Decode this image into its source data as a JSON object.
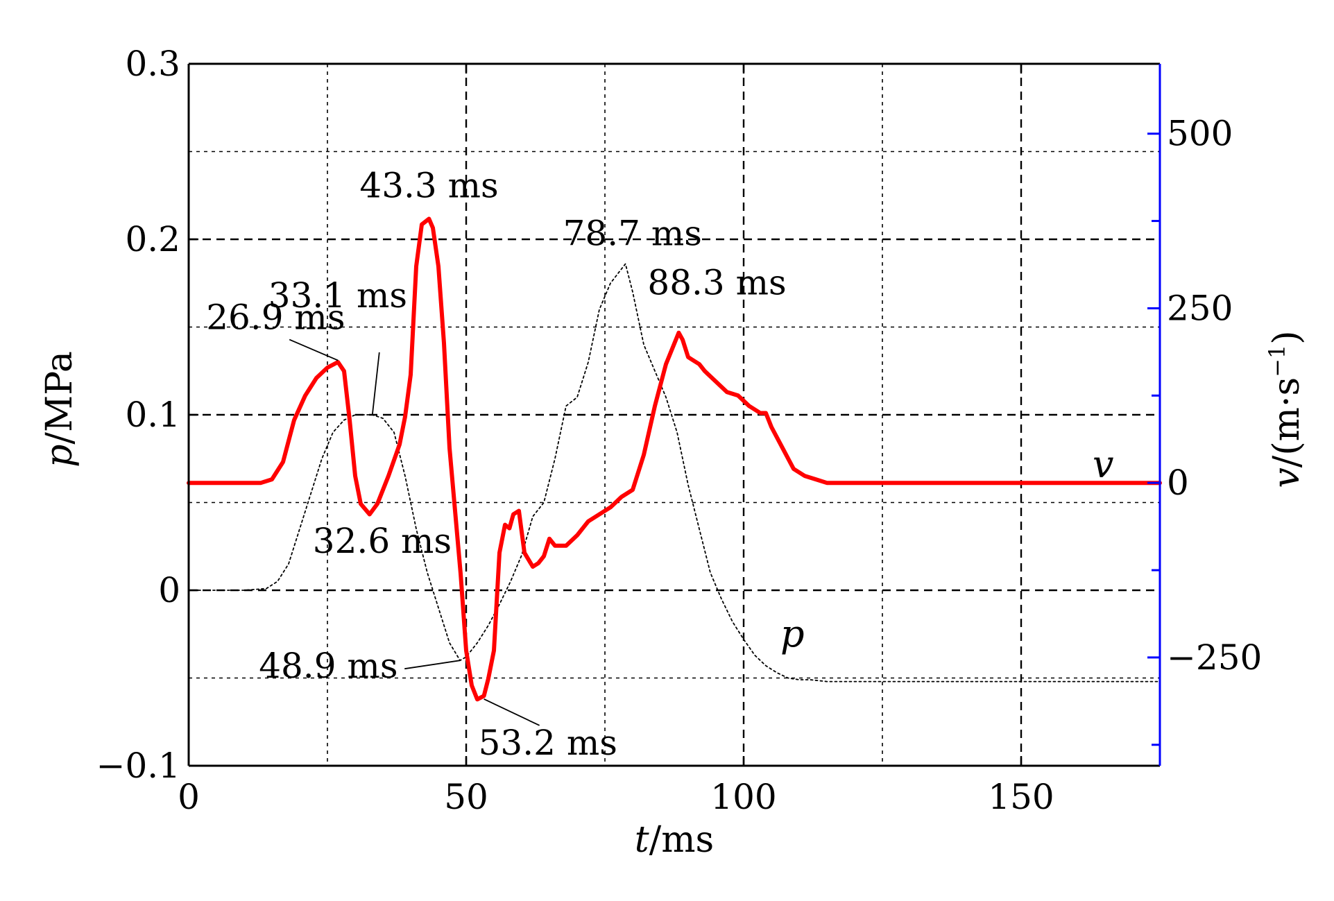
{
  "chart_data": {
    "type": "line",
    "xlabel": "t/ms",
    "xlabel_italic": "t",
    "xlabel_rest": "/ms",
    "ylabel_left": "p/MPa",
    "ylabel_left_italic": "p",
    "ylabel_left_rest": "/MPa",
    "ylabel_right": "v/(m·s⁻¹)",
    "ylabel_right_italic": "v",
    "ylabel_right_rest": "/(m·s",
    "ylabel_right_sup": "−1",
    "ylabel_right_close": ")",
    "xlim": [
      0,
      175
    ],
    "ylim_left": [
      -0.1,
      0.3
    ],
    "ylim_right": [
      -405,
      600
    ],
    "x_ticks": [
      0,
      50,
      100,
      150
    ],
    "x_tick_labels": [
      "0",
      "50",
      "100",
      "150"
    ],
    "y_left_ticks": [
      -0.1,
      0,
      0.1,
      0.2,
      0.3
    ],
    "y_left_tick_labels": [
      "−0.1",
      "0",
      "0.1",
      "0.2",
      "0.3"
    ],
    "y_right_ticks": [
      -250,
      0,
      250,
      500
    ],
    "y_right_tick_labels": [
      "−250",
      "0",
      "250",
      "500"
    ],
    "grid": true,
    "right_axis_color": "#0000ff",
    "series": [
      {
        "name": "p",
        "axis": "left",
        "color": "#000000",
        "style": "dotted",
        "x": [
          0,
          5,
          10,
          14,
          16,
          18,
          20,
          22,
          24,
          26,
          28,
          30,
          32,
          33.1,
          35,
          37,
          39,
          41,
          43,
          45,
          47,
          48.9,
          50,
          52,
          54,
          56,
          58,
          60,
          62,
          64,
          66,
          68,
          70,
          72,
          74,
          76,
          78.7,
          80,
          82,
          84,
          86,
          88,
          90,
          92,
          94,
          96,
          98,
          100,
          102,
          104,
          106,
          108,
          110,
          112,
          115,
          120,
          130,
          140,
          150,
          160,
          170,
          175
        ],
        "y": [
          0,
          0,
          0,
          0.001,
          0.005,
          0.015,
          0.035,
          0.055,
          0.075,
          0.09,
          0.097,
          0.1,
          0.1,
          0.1,
          0.098,
          0.09,
          0.065,
          0.035,
          0.01,
          -0.01,
          -0.03,
          -0.04,
          -0.038,
          -0.03,
          -0.02,
          -0.008,
          0.005,
          0.02,
          0.042,
          0.05,
          0.075,
          0.105,
          0.11,
          0.13,
          0.16,
          0.175,
          0.186,
          0.17,
          0.14,
          0.125,
          0.11,
          0.09,
          0.06,
          0.035,
          0.01,
          -0.005,
          -0.018,
          -0.028,
          -0.037,
          -0.043,
          -0.047,
          -0.05,
          -0.051,
          -0.051,
          -0.052,
          -0.052,
          -0.052,
          -0.052,
          -0.052,
          -0.052,
          -0.052,
          -0.052
        ]
      },
      {
        "name": "v",
        "axis": "right",
        "color": "#ff0000",
        "style": "solid",
        "x": [
          0,
          5,
          10,
          13,
          15,
          17,
          19,
          21,
          23,
          25,
          26.9,
          28,
          29,
          30,
          31,
          32.6,
          34,
          36,
          38,
          39,
          40,
          41,
          42,
          43.3,
          44,
          45,
          46,
          47,
          48,
          49,
          50,
          51,
          52,
          53.2,
          54,
          55,
          56,
          57,
          57.8,
          58.5,
          59.5,
          60.5,
          62,
          63,
          64,
          65,
          66,
          68,
          70,
          72,
          74,
          76,
          78,
          80,
          82,
          84,
          86,
          88.3,
          89,
          90,
          91,
          92,
          93,
          95,
          97,
          99,
          101,
          103,
          104,
          105,
          107,
          109,
          111,
          113,
          115,
          118,
          120,
          130,
          140,
          150,
          160,
          170,
          175
        ],
        "y": [
          0,
          0,
          0,
          0,
          5,
          30,
          90,
          125,
          150,
          165,
          173,
          160,
          90,
          10,
          -30,
          -45,
          -30,
          10,
          55,
          95,
          155,
          310,
          370,
          378,
          365,
          310,
          200,
          50,
          -40,
          -130,
          -240,
          -290,
          -310,
          -305,
          -280,
          -240,
          -100,
          -60,
          -65,
          -45,
          -40,
          -100,
          -120,
          -115,
          -105,
          -80,
          -90,
          -90,
          -75,
          -55,
          -45,
          -35,
          -20,
          -10,
          40,
          110,
          170,
          215,
          205,
          180,
          175,
          170,
          160,
          145,
          130,
          125,
          110,
          100,
          100,
          80,
          50,
          20,
          10,
          5,
          0,
          0,
          0,
          0,
          0,
          0,
          0,
          0,
          0
        ]
      }
    ],
    "annotations": [
      {
        "text": "26.9 ms",
        "x": 26.9,
        "y": 0.131,
        "axis": "left"
      },
      {
        "text": "33.1 ms",
        "x": 33.1,
        "y": 0.1,
        "axis": "left"
      },
      {
        "text": "43.3 ms",
        "x": 43.3,
        "y": 0.212,
        "axis": "left"
      },
      {
        "text": "32.6 ms",
        "x": 32.6,
        "y": 0.043,
        "axis": "left"
      },
      {
        "text": "48.9 ms",
        "x": 48.9,
        "y": -0.04,
        "axis": "left"
      },
      {
        "text": "53.2 ms",
        "x": 53.2,
        "y": -0.062,
        "axis": "left"
      },
      {
        "text": "78.7 ms",
        "x": 78.7,
        "y": 0.186,
        "axis": "left"
      },
      {
        "text": "88.3 ms",
        "x": 88.3,
        "y": 0.152,
        "axis": "left"
      }
    ],
    "series_labels": [
      "p",
      "v"
    ]
  }
}
